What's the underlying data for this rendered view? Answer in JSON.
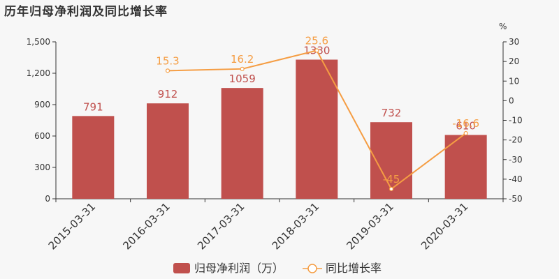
{
  "chart_data": {
    "type": "bar+line",
    "title": "历年归母净利润及同比增长率",
    "categories": [
      "2015-03-31",
      "2016-03-31",
      "2017-03-31",
      "2018-03-31",
      "2019-03-31",
      "2020-03-31"
    ],
    "series": [
      {
        "name": "归母净利润（万）",
        "type": "bar",
        "axis": "left",
        "values": [
          791,
          912,
          1059,
          1330,
          732,
          610
        ],
        "labels": [
          "791",
          "912",
          "1059",
          "1330",
          "732",
          "610"
        ],
        "color": "#c0504d"
      },
      {
        "name": "同比增长率",
        "type": "line",
        "axis": "right",
        "values": [
          null,
          15.3,
          16.2,
          25.6,
          -45,
          -16.6
        ],
        "labels": [
          "",
          "15.3",
          "16.2",
          "25.6",
          "-45",
          "-16.6"
        ],
        "color": "#f59d43"
      }
    ],
    "y_left": {
      "ylim": [
        0,
        1500
      ],
      "ticks": [
        0,
        300,
        600,
        900,
        1200,
        1500
      ],
      "tick_labels": [
        "0",
        "300",
        "600",
        "900",
        "1,200",
        "1,500"
      ]
    },
    "y_right": {
      "unit": "%",
      "ylim": [
        -50,
        30
      ],
      "ticks": [
        -50,
        -40,
        -30,
        -20,
        -10,
        0,
        10,
        20,
        30
      ],
      "tick_labels": [
        "-50",
        "-40",
        "-30",
        "-20",
        "-10",
        "0",
        "10",
        "20",
        "30"
      ]
    },
    "grid": false,
    "legend_position": "bottom"
  }
}
